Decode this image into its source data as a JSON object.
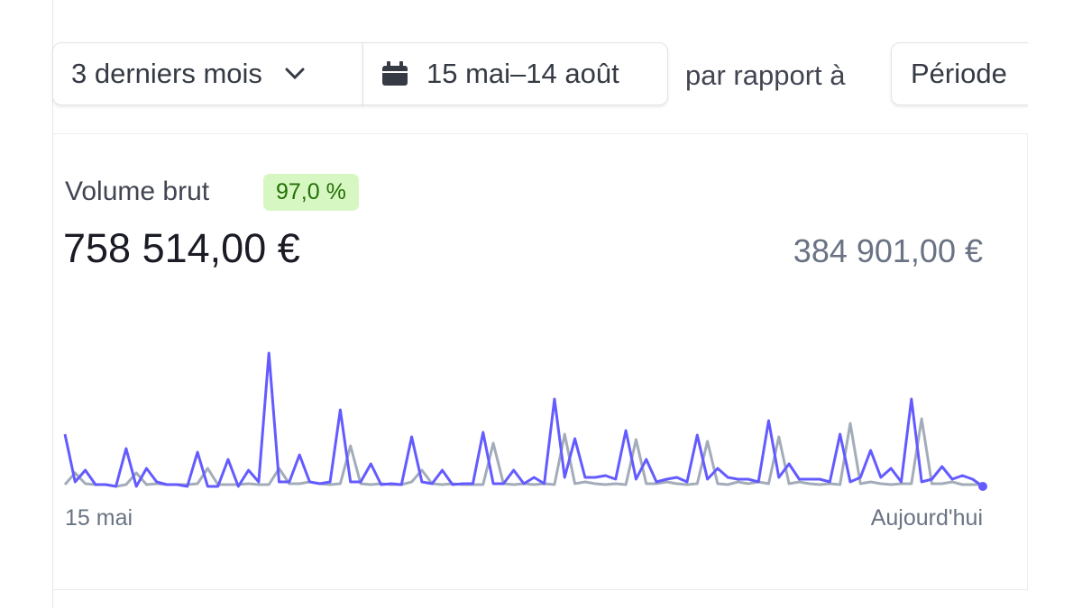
{
  "toolbar": {
    "range_button": "3 derniers mois",
    "date_range": "15 mai–14 août",
    "compare_label": "par rapport à",
    "compare_button": "Période"
  },
  "card": {
    "title": "Volume brut",
    "badge": "97,0 %",
    "value": "758 514,00 €",
    "previous_value": "384 901,00 €"
  },
  "chart_data": {
    "type": "line",
    "categories": [
      "15 mai",
      null,
      null,
      null,
      null,
      null,
      null,
      null,
      null,
      null,
      null,
      null,
      null,
      null,
      null,
      null,
      null,
      null,
      null,
      null,
      null,
      null,
      null,
      null,
      null,
      null,
      null,
      null,
      null,
      null,
      null,
      null,
      null,
      null,
      null,
      null,
      null,
      null,
      null,
      null,
      null,
      null,
      null,
      null,
      null,
      null,
      null,
      null,
      null,
      null,
      null,
      null,
      null,
      null,
      null,
      null,
      null,
      null,
      null,
      null,
      null,
      null,
      null,
      null,
      null,
      null,
      null,
      null,
      null,
      null,
      null,
      null,
      null,
      null,
      null,
      null,
      null,
      null,
      null,
      null,
      null,
      null,
      null,
      null,
      null,
      null,
      null,
      null,
      null,
      null,
      "Aujourd'hui"
    ],
    "ylim": [
      0,
      150
    ],
    "series": [
      {
        "color": "#a3acb9",
        "values": [
          2,
          15,
          3,
          2,
          2,
          0,
          2,
          15,
          2,
          3,
          2,
          2,
          2,
          3,
          20,
          2,
          2,
          2,
          3,
          2,
          2,
          20,
          3,
          3,
          5,
          3,
          2,
          3,
          45,
          3,
          2,
          3,
          2,
          2,
          5,
          18,
          3,
          2,
          3,
          2,
          2,
          2,
          48,
          3,
          2,
          3,
          2,
          3,
          2,
          58,
          3,
          5,
          3,
          2,
          3,
          2,
          52,
          3,
          3,
          5,
          3,
          2,
          3,
          50,
          3,
          2,
          5,
          3,
          5,
          3,
          55,
          3,
          5,
          3,
          2,
          3,
          2,
          70,
          3,
          5,
          3,
          2,
          3,
          3,
          75,
          3,
          3,
          5,
          2,
          2,
          2
        ]
      },
      {
        "color": "#635bff",
        "values": [
          58,
          5,
          18,
          2,
          2,
          0,
          42,
          0,
          20,
          5,
          2,
          2,
          0,
          38,
          0,
          0,
          30,
          0,
          18,
          5,
          148,
          5,
          5,
          35,
          5,
          3,
          5,
          85,
          5,
          5,
          25,
          2,
          3,
          2,
          55,
          5,
          3,
          18,
          2,
          3,
          3,
          60,
          3,
          3,
          18,
          3,
          10,
          3,
          97,
          10,
          53,
          10,
          10,
          12,
          8,
          62,
          8,
          30,
          5,
          8,
          10,
          5,
          57,
          8,
          20,
          10,
          8,
          8,
          5,
          73,
          10,
          25,
          8,
          8,
          8,
          5,
          58,
          5,
          10,
          40,
          10,
          20,
          5,
          97,
          5,
          8,
          22,
          8,
          12,
          8,
          0
        ]
      }
    ]
  }
}
